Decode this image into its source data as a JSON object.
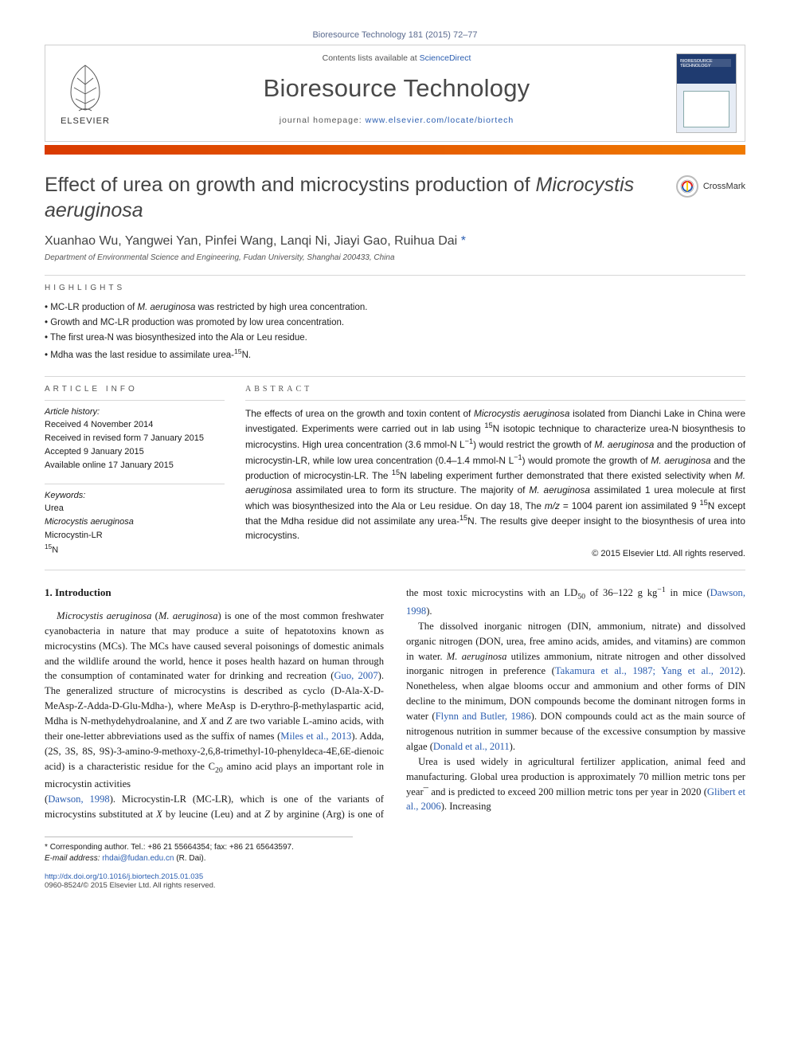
{
  "citation": "Bioresource Technology 181 (2015) 72–77",
  "header": {
    "publisher": "ELSEVIER",
    "contents_prefix": "Contents lists available at ",
    "contents_link": "ScienceDirect",
    "journal": "Bioresource Technology",
    "homepage_prefix": "journal homepage: ",
    "homepage_url": "www.elsevier.com/locate/biortech",
    "cover_title": "BIORESOURCE TECHNOLOGY"
  },
  "crossmark": "CrossMark",
  "title_a": "Effect of urea on growth and microcystins production of ",
  "title_b_italic": "Microcystis aeruginosa",
  "authors": "Xuanhao Wu, Yangwei Yan, Pinfei Wang, Lanqi Ni, Jiayi Gao, Ruihua Dai",
  "corr_mark": "*",
  "affiliation": "Department of Environmental Science and Engineering, Fudan University, Shanghai 200433, China",
  "highlights_label": "HIGHLIGHTS",
  "highlights": [
    {
      "pre": "MC-LR production of ",
      "it": "M. aeruginosa",
      "post": " was restricted by high urea concentration."
    },
    {
      "pre": "Growth and MC-LR production was promoted by low urea concentration.",
      "it": "",
      "post": ""
    },
    {
      "pre": "The first urea-N was biosynthesized into the Ala or Leu residue.",
      "it": "",
      "post": ""
    },
    {
      "pre": "Mdha was the last residue to assimilate urea-",
      "it": "",
      "post": "",
      "sup": "15",
      "tail": "N."
    }
  ],
  "article_info_label": "ARTICLE INFO",
  "abstract_label": "ABSTRACT",
  "history_head": "Article history:",
  "history": [
    "Received 4 November 2014",
    "Received in revised form 7 January 2015",
    "Accepted 9 January 2015",
    "Available online 17 January 2015"
  ],
  "keywords_head": "Keywords:",
  "keywords": [
    {
      "t": "Urea"
    },
    {
      "t": "Microcystis aeruginosa",
      "italic": true
    },
    {
      "t": "Microcystin-LR"
    },
    {
      "pre_sup": "15",
      "t": "N"
    }
  ],
  "abstract": "The effects of urea on the growth and toxin content of Microcystis aeruginosa isolated from Dianchi Lake in China were investigated. Experiments were carried out in lab using 15N isotopic technique to characterize urea-N biosynthesis to microcystins. High urea concentration (3.6 mmol-N L−1) would restrict the growth of M. aeruginosa and the production of microcystin-LR, while low urea concentration (0.4–1.4 mmol-N L−1) would promote the growth of M. aeruginosa and the production of microcystin-LR. The 15N labeling experiment further demonstrated that there existed selectivity when M. aeruginosa assimilated urea to form its structure. The majority of M. aeruginosa assimilated 1 urea molecule at first which was biosynthesized into the Ala or Leu residue. On day 18, The m/z = 1004 parent ion assimilated 9 15N except that the Mdha residue did not assimilate any urea-15N. The results give deeper insight to the biosynthesis of urea into microcystins.",
  "copyright": "© 2015 Elsevier Ltd. All rights reserved.",
  "intro_heading": "1. Introduction",
  "body": {
    "p1": "Microcystis aeruginosa (M. aeruginosa) is one of the most common freshwater cyanobacteria in nature that may produce a suite of hepatotoxins known as microcystins (MCs). The MCs have caused several poisonings of domestic animals and the wildlife around the world, hence it poses health hazard on human through the consumption of contaminated water for drinking and recreation (Guo, 2007). The generalized structure of microcystins is described as cyclo (D-Ala-X-D-MeAsp-Z-Adda-D-Glu-Mdha-), where MeAsp is D-erythro-β-methylaspartic acid, Mdha is N-methydehydroalanine, and X and Z are two variable L-amino acids, with their one-letter abbreviations used as the suffix of names (Miles et al., 2013). Adda, (2S, 3S, 8S, 9S)-3-amino-9-methoxy-2,6,8-trimethyl-10-phenyldeca-4E,6E-dienoic acid) is a characteristic residue for the C20 amino acid plays an important role in microcystin activities",
    "p2": "(Dawson, 1998). Microcystin-LR (MC-LR), which is one of the variants of microcystins substituted at X by leucine (Leu) and at Z by arginine (Arg) is one of the most toxic microcystins with an LD50 of 36–122 g kg−1 in mice (Dawson, 1998).",
    "p3": "The dissolved inorganic nitrogen (DIN, ammonium, nitrate) and dissolved organic nitrogen (DON, urea, free amino acids, amides, and vitamins) are common in water. M. aeruginosa utilizes ammonium, nitrate nitrogen and other dissolved inorganic nitrogen in preference (Takamura et al., 1987; Yang et al., 2012). Nonetheless, when algae blooms occur and ammonium and other forms of DIN decline to the minimum, DON compounds become the dominant nitrogen forms in water (Flynn and Butler, 1986). DON compounds could act as the main source of nitrogenous nutrition in summer because of the excessive consumption by massive algae (Donald et al., 2011).",
    "p4": "Urea is used widely in agricultural fertilizer application, animal feed and manufacturing. Global urea production is approximately 70 million metric tons per year¯ and is predicted to exceed 200 million metric tons per year in 2020 (Glibert et al., 2006). Increasing"
  },
  "footnote": {
    "corr": "Corresponding author. Tel.: +86 21 55664354; fax: +86 21 65643597.",
    "email_label": "E-mail address:",
    "email": "rhdai@fudan.edu.cn",
    "email_person": "(R. Dai)."
  },
  "footer": {
    "doi": "http://dx.doi.org/10.1016/j.biortech.2015.01.035",
    "issn_line": "0960-8524/© 2015 Elsevier Ltd. All rights reserved."
  },
  "colors": {
    "accent_bar_start": "#d93a00",
    "accent_bar_end": "#f07a00",
    "link": "#2a5db0",
    "rule": "#d7d7d7"
  }
}
